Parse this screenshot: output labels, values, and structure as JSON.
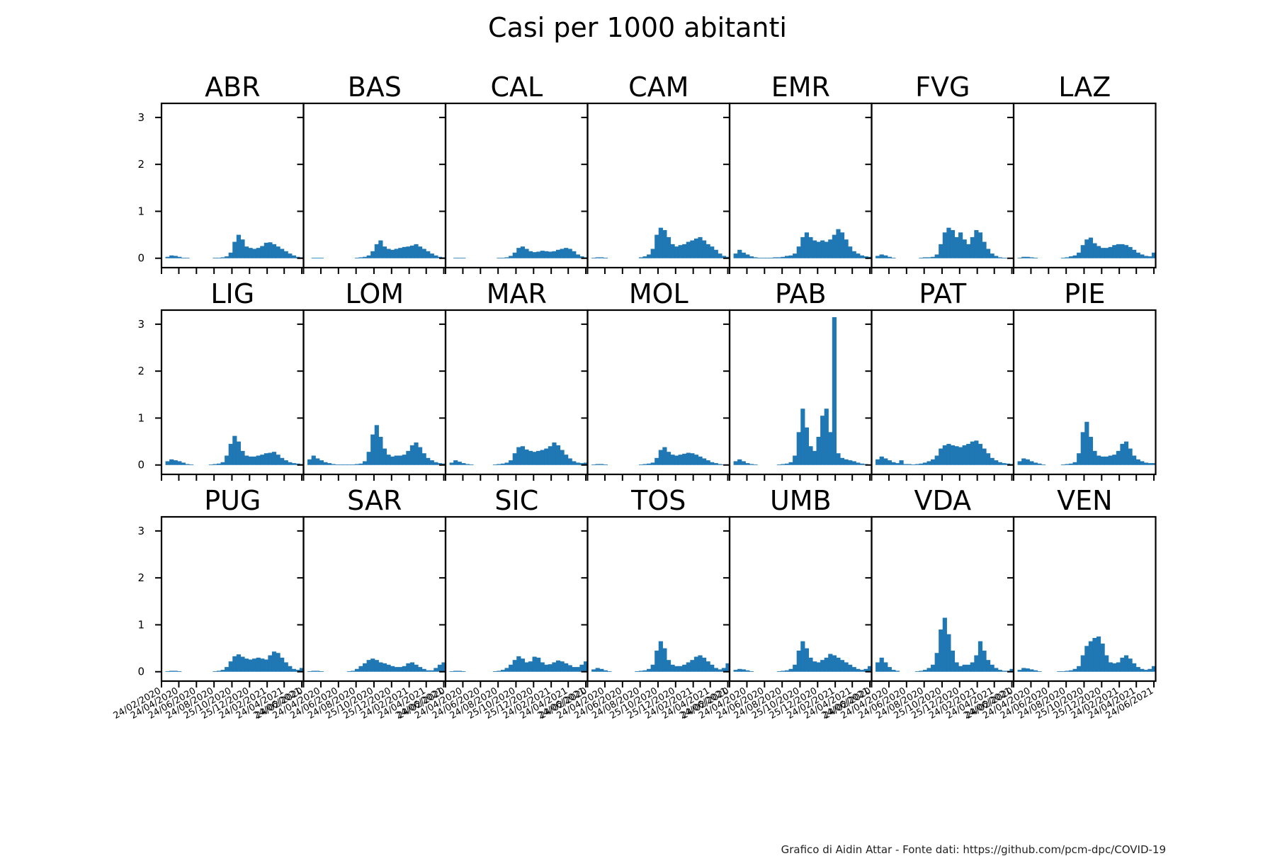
{
  "title": "Casi per 1000 abitanti",
  "footer": "Grafico di Aidin Attar - Fonte dati: https://github.com/pcm-dpc/COVID-19",
  "colors": {
    "bars": "#1f77b4",
    "axes": "#000000",
    "text": "#000000"
  },
  "chart_data": {
    "type": "bar",
    "layout": "small-multiples 3x7, shared y axis",
    "ylim": [
      -0.2,
      3.3
    ],
    "yticks": [
      0,
      1,
      2,
      3
    ],
    "grid": false,
    "x_start": "24/02/2020",
    "x_end": "30/06/2021",
    "xtick_labels_first_column": [
      "24/02/2020",
      "24/04/2020",
      "24/06/2020",
      "24/08/2020",
      "25/10/2020",
      "25/12/2020",
      "24/02/2021",
      "24/04/2021",
      "24/06/2021"
    ],
    "xtick_labels_other_columns": [
      "24/02/2020",
      "24/04/2020",
      "24/06/2020",
      "24/08/2020",
      "25/10/2020",
      "25/12/2020",
      "24/02/2021",
      "24/04/2021",
      "24/06/2021"
    ],
    "note": "Values are approximate readings of daily new cases per 1000 inhabitants, shown here as biweekly points.",
    "x": [
      "24/02/2020",
      "09/03/2020",
      "23/03/2020",
      "06/04/2020",
      "20/04/2020",
      "04/05/2020",
      "18/05/2020",
      "01/06/2020",
      "15/06/2020",
      "29/06/2020",
      "13/07/2020",
      "27/07/2020",
      "10/08/2020",
      "24/08/2020",
      "07/09/2020",
      "21/09/2020",
      "05/10/2020",
      "19/10/2020",
      "02/11/2020",
      "16/11/2020",
      "30/11/2020",
      "14/12/2020",
      "28/12/2020",
      "11/01/2021",
      "25/01/2021",
      "08/02/2021",
      "22/02/2021",
      "08/03/2021",
      "22/03/2021",
      "05/04/2021",
      "19/04/2021",
      "03/05/2021",
      "17/05/2021",
      "31/05/2021",
      "14/06/2021",
      "28/06/2021"
    ],
    "series": [
      {
        "name": "ABR",
        "values": [
          0,
          0.03,
          0.06,
          0.05,
          0.03,
          0.01,
          0.01,
          0,
          0,
          0,
          0,
          0,
          0,
          0.01,
          0.01,
          0.02,
          0.04,
          0.12,
          0.35,
          0.5,
          0.4,
          0.25,
          0.22,
          0.2,
          0.22,
          0.26,
          0.33,
          0.34,
          0.3,
          0.25,
          0.2,
          0.15,
          0.1,
          0.06,
          0.03,
          0.02
        ]
      },
      {
        "name": "BAS",
        "values": [
          0,
          0,
          0.01,
          0.01,
          0.01,
          0,
          0,
          0,
          0,
          0,
          0,
          0,
          0,
          0.01,
          0.02,
          0.03,
          0.06,
          0.15,
          0.3,
          0.38,
          0.25,
          0.2,
          0.18,
          0.2,
          0.22,
          0.24,
          0.25,
          0.27,
          0.3,
          0.25,
          0.2,
          0.15,
          0.1,
          0.06,
          0.03,
          0.02
        ]
      },
      {
        "name": "CAL",
        "values": [
          0,
          0,
          0.01,
          0.01,
          0.01,
          0,
          0,
          0,
          0,
          0,
          0,
          0,
          0,
          0.01,
          0.01,
          0.02,
          0.05,
          0.12,
          0.22,
          0.25,
          0.2,
          0.15,
          0.13,
          0.14,
          0.16,
          0.15,
          0.14,
          0.15,
          0.18,
          0.2,
          0.22,
          0.2,
          0.15,
          0.08,
          0.04,
          0.02
        ]
      },
      {
        "name": "CAM",
        "values": [
          0,
          0.01,
          0.02,
          0.02,
          0.01,
          0,
          0,
          0,
          0,
          0,
          0,
          0,
          0,
          0.02,
          0.04,
          0.08,
          0.2,
          0.5,
          0.65,
          0.6,
          0.45,
          0.3,
          0.25,
          0.28,
          0.3,
          0.35,
          0.38,
          0.42,
          0.45,
          0.38,
          0.3,
          0.25,
          0.18,
          0.1,
          0.05,
          0.03
        ]
      },
      {
        "name": "EMR",
        "values": [
          0,
          0.1,
          0.18,
          0.12,
          0.08,
          0.04,
          0.02,
          0.01,
          0.01,
          0.01,
          0.01,
          0.02,
          0.02,
          0.03,
          0.05,
          0.06,
          0.1,
          0.25,
          0.45,
          0.55,
          0.45,
          0.38,
          0.35,
          0.38,
          0.35,
          0.4,
          0.5,
          0.62,
          0.55,
          0.4,
          0.25,
          0.15,
          0.1,
          0.06,
          0.04,
          0.03
        ]
      },
      {
        "name": "FVG",
        "values": [
          0,
          0.05,
          0.08,
          0.06,
          0.03,
          0.01,
          0,
          0,
          0,
          0,
          0,
          0,
          0.01,
          0.02,
          0.02,
          0.03,
          0.08,
          0.3,
          0.55,
          0.65,
          0.6,
          0.45,
          0.55,
          0.4,
          0.3,
          0.45,
          0.6,
          0.55,
          0.35,
          0.2,
          0.1,
          0.05,
          0.02,
          0.01,
          0.01,
          0.01
        ]
      },
      {
        "name": "LAZ",
        "values": [
          0,
          0.01,
          0.03,
          0.03,
          0.02,
          0.01,
          0,
          0,
          0,
          0,
          0,
          0,
          0.01,
          0.02,
          0.04,
          0.06,
          0.12,
          0.28,
          0.4,
          0.44,
          0.32,
          0.26,
          0.22,
          0.22,
          0.24,
          0.28,
          0.3,
          0.3,
          0.28,
          0.24,
          0.18,
          0.12,
          0.08,
          0.05,
          0.04,
          0.12
        ]
      },
      {
        "name": "LIG",
        "values": [
          0,
          0.08,
          0.12,
          0.1,
          0.08,
          0.05,
          0.02,
          0.01,
          0,
          0,
          0,
          0,
          0.01,
          0.02,
          0.03,
          0.06,
          0.2,
          0.45,
          0.62,
          0.5,
          0.3,
          0.2,
          0.18,
          0.18,
          0.2,
          0.22,
          0.25,
          0.26,
          0.28,
          0.22,
          0.15,
          0.1,
          0.06,
          0.04,
          0.03,
          0.02
        ]
      },
      {
        "name": "LOM",
        "values": [
          0,
          0.12,
          0.2,
          0.14,
          0.1,
          0.06,
          0.04,
          0.02,
          0.01,
          0.01,
          0.01,
          0.01,
          0.01,
          0.02,
          0.03,
          0.08,
          0.28,
          0.65,
          0.85,
          0.6,
          0.35,
          0.22,
          0.18,
          0.2,
          0.2,
          0.22,
          0.3,
          0.42,
          0.48,
          0.38,
          0.25,
          0.15,
          0.1,
          0.06,
          0.04,
          0.03
        ]
      },
      {
        "name": "MAR",
        "values": [
          0,
          0.05,
          0.1,
          0.07,
          0.04,
          0.02,
          0.01,
          0,
          0,
          0,
          0,
          0,
          0.01,
          0.02,
          0.03,
          0.05,
          0.1,
          0.25,
          0.38,
          0.4,
          0.33,
          0.3,
          0.28,
          0.3,
          0.32,
          0.35,
          0.4,
          0.48,
          0.42,
          0.32,
          0.22,
          0.14,
          0.08,
          0.05,
          0.04,
          0.05
        ]
      },
      {
        "name": "MOL",
        "values": [
          0,
          0.01,
          0.02,
          0.02,
          0.01,
          0,
          0,
          0,
          0,
          0,
          0,
          0,
          0,
          0.01,
          0.02,
          0.03,
          0.05,
          0.15,
          0.32,
          0.38,
          0.28,
          0.22,
          0.2,
          0.22,
          0.24,
          0.26,
          0.25,
          0.22,
          0.18,
          0.14,
          0.1,
          0.06,
          0.04,
          0.02,
          0.01,
          0.01
        ]
      },
      {
        "name": "PAB",
        "values": [
          0,
          0.08,
          0.12,
          0.08,
          0.04,
          0.02,
          0.01,
          0,
          0,
          0,
          0,
          0,
          0.01,
          0.02,
          0.03,
          0.06,
          0.2,
          0.7,
          1.2,
          0.8,
          0.4,
          0.3,
          0.6,
          1.05,
          1.2,
          0.7,
          3.15,
          0.25,
          0.15,
          0.12,
          0.1,
          0.08,
          0.05,
          0.03,
          0.02,
          0.01
        ]
      },
      {
        "name": "PAT",
        "values": [
          0,
          0.12,
          0.18,
          0.14,
          0.1,
          0.06,
          0.04,
          0.1,
          0.02,
          0.02,
          0.01,
          0.02,
          0.03,
          0.05,
          0.08,
          0.12,
          0.2,
          0.35,
          0.42,
          0.45,
          0.42,
          0.4,
          0.38,
          0.42,
          0.45,
          0.5,
          0.52,
          0.45,
          0.35,
          0.25,
          0.15,
          0.1,
          0.06,
          0.04,
          0.03,
          0.02
        ]
      },
      {
        "name": "PIE",
        "values": [
          0,
          0.08,
          0.14,
          0.12,
          0.08,
          0.05,
          0.03,
          0.01,
          0,
          0,
          0,
          0,
          0.01,
          0.02,
          0.03,
          0.06,
          0.25,
          0.7,
          0.92,
          0.6,
          0.3,
          0.2,
          0.18,
          0.18,
          0.2,
          0.22,
          0.3,
          0.45,
          0.5,
          0.35,
          0.2,
          0.12,
          0.08,
          0.05,
          0.04,
          0.04
        ]
      },
      {
        "name": "PUG",
        "values": [
          0,
          0.01,
          0.02,
          0.02,
          0.01,
          0,
          0,
          0,
          0,
          0,
          0,
          0,
          0,
          0.01,
          0.02,
          0.04,
          0.1,
          0.22,
          0.33,
          0.37,
          0.32,
          0.28,
          0.26,
          0.28,
          0.3,
          0.28,
          0.26,
          0.35,
          0.43,
          0.4,
          0.3,
          0.2,
          0.12,
          0.06,
          0.04,
          0.08
        ]
      },
      {
        "name": "SAR",
        "values": [
          0,
          0.01,
          0.02,
          0.02,
          0.01,
          0,
          0,
          0,
          0,
          0,
          0,
          0.01,
          0.02,
          0.06,
          0.12,
          0.18,
          0.25,
          0.28,
          0.25,
          0.2,
          0.18,
          0.15,
          0.12,
          0.1,
          0.1,
          0.12,
          0.18,
          0.2,
          0.15,
          0.1,
          0.06,
          0.03,
          0.03,
          0.08,
          0.15,
          0.2
        ]
      },
      {
        "name": "SIC",
        "values": [
          0,
          0.01,
          0.02,
          0.02,
          0.01,
          0,
          0,
          0,
          0,
          0,
          0,
          0,
          0.01,
          0.02,
          0.04,
          0.08,
          0.15,
          0.25,
          0.33,
          0.28,
          0.2,
          0.22,
          0.32,
          0.3,
          0.2,
          0.15,
          0.16,
          0.2,
          0.24,
          0.22,
          0.18,
          0.14,
          0.1,
          0.1,
          0.15,
          0.22
        ]
      },
      {
        "name": "TOS",
        "values": [
          0,
          0.05,
          0.08,
          0.06,
          0.03,
          0.01,
          0,
          0,
          0,
          0,
          0,
          0,
          0.01,
          0.02,
          0.03,
          0.06,
          0.15,
          0.45,
          0.65,
          0.5,
          0.25,
          0.15,
          0.12,
          0.12,
          0.15,
          0.2,
          0.25,
          0.32,
          0.35,
          0.3,
          0.22,
          0.15,
          0.08,
          0.05,
          0.08,
          0.18
        ]
      },
      {
        "name": "UMB",
        "values": [
          0,
          0.04,
          0.06,
          0.05,
          0.03,
          0.01,
          0,
          0,
          0,
          0,
          0,
          0,
          0.01,
          0.02,
          0.03,
          0.06,
          0.15,
          0.45,
          0.65,
          0.5,
          0.3,
          0.22,
          0.2,
          0.25,
          0.3,
          0.38,
          0.35,
          0.3,
          0.25,
          0.2,
          0.15,
          0.1,
          0.06,
          0.04,
          0.06,
          0.12
        ]
      },
      {
        "name": "VDA",
        "values": [
          0,
          0.2,
          0.3,
          0.2,
          0.1,
          0.04,
          0.02,
          0,
          0,
          0,
          0,
          0.01,
          0.02,
          0.04,
          0.08,
          0.15,
          0.4,
          0.9,
          1.15,
          0.8,
          0.45,
          0.2,
          0.12,
          0.15,
          0.15,
          0.2,
          0.35,
          0.65,
          0.45,
          0.25,
          0.15,
          0.08,
          0.04,
          0.02,
          0.02,
          0.06
        ]
      },
      {
        "name": "VEN",
        "values": [
          0,
          0.04,
          0.08,
          0.07,
          0.05,
          0.03,
          0.01,
          0,
          0,
          0,
          0,
          0.01,
          0.01,
          0.02,
          0.03,
          0.06,
          0.12,
          0.35,
          0.55,
          0.65,
          0.72,
          0.75,
          0.6,
          0.35,
          0.2,
          0.18,
          0.2,
          0.3,
          0.35,
          0.28,
          0.18,
          0.1,
          0.06,
          0.04,
          0.06,
          0.12
        ]
      }
    ]
  }
}
